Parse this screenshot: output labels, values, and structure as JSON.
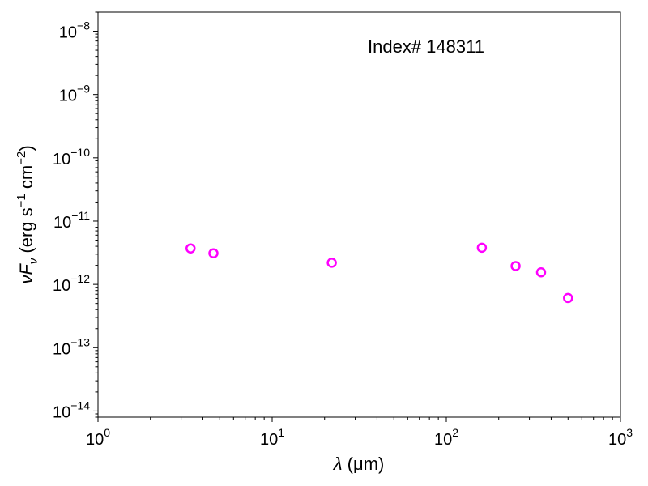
{
  "chart_data": {
    "type": "scatter",
    "title": "",
    "annotation": "Index# 148311",
    "xlabel": {
      "symbol": "λ",
      "unit": "(μm)"
    },
    "ylabel": {
      "symbol": "νF",
      "subscript": "ν",
      "unit_prefix": "(erg s",
      "exp1": "−1",
      "unit_mid": " cm",
      "exp2": "−2",
      "unit_suffix": ")"
    },
    "xscale": "log",
    "yscale": "log",
    "xlim": [
      1,
      1000
    ],
    "ylim": [
      8e-15,
      2e-08
    ],
    "x_ticks": [
      {
        "base": "10",
        "exp": "0"
      },
      {
        "base": "10",
        "exp": "1"
      },
      {
        "base": "10",
        "exp": "2"
      },
      {
        "base": "10",
        "exp": "3"
      }
    ],
    "y_ticks": [
      {
        "base": "10",
        "exp": "−14"
      },
      {
        "base": "10",
        "exp": "−13"
      },
      {
        "base": "10",
        "exp": "−12"
      },
      {
        "base": "10",
        "exp": "−11"
      },
      {
        "base": "10",
        "exp": "−10"
      },
      {
        "base": "10",
        "exp": "−9"
      },
      {
        "base": "10",
        "exp": "−8"
      }
    ],
    "grid": false,
    "marker": {
      "shape": "open-circle",
      "color": "#ff00ff"
    },
    "points": [
      {
        "x": 3.4,
        "y": 3.7e-12
      },
      {
        "x": 4.6,
        "y": 3.1e-12
      },
      {
        "x": 22,
        "y": 2.2e-12
      },
      {
        "x": 160,
        "y": 3.8e-12
      },
      {
        "x": 250,
        "y": 1.95e-12
      },
      {
        "x": 350,
        "y": 1.55e-12
      },
      {
        "x": 500,
        "y": 6.1e-13
      }
    ]
  }
}
